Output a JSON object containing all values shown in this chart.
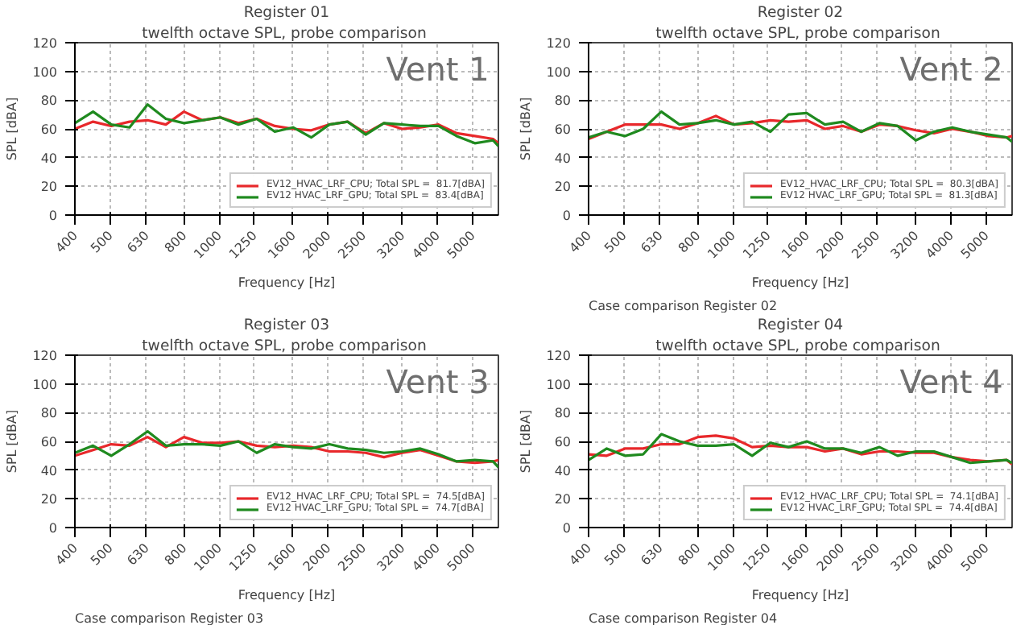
{
  "chart_data": [
    {
      "type": "line",
      "title": "Register 01",
      "subtitle": "twelfth octave SPL,  probe comparison",
      "xlabel": "Frequency [Hz]",
      "ylabel": "SPL [dBA]",
      "log": "x",
      "grid": true,
      "legend": "bottom right",
      "xlim": [
        400,
        5900
      ],
      "ylim": [
        0,
        120
      ],
      "xticks": [
        400,
        500,
        630,
        800,
        1000,
        1250,
        1600,
        2000,
        2500,
        3200,
        4000,
        5000
      ],
      "yticks": [
        0,
        20,
        40,
        60,
        80,
        100,
        120
      ],
      "annotations": [
        "Vent 1"
      ],
      "x": [
        400,
        449,
        504,
        566,
        635,
        713,
        800,
        898,
        1008,
        1131,
        1270,
        1425,
        1600,
        1796,
        2016,
        2263,
        2540,
        2851,
        3200,
        3592,
        4032,
        4525,
        5080,
        5702,
        5900
      ],
      "series": [
        {
          "name": "EV12_HVAC_LRF_CPU; Total SPL =  81.7[dBA]",
          "color": "#e8282b",
          "values": [
            60,
            65,
            62,
            65,
            66,
            63,
            72,
            66,
            68,
            64,
            67,
            62,
            60,
            59,
            63,
            65,
            57,
            64,
            60,
            61,
            63,
            57,
            55,
            53,
            50
          ]
        },
        {
          "name": "EV12 HVAC_LRF_GPU; Total SPL =  83.4[dBA]",
          "color": "#1f8a1f",
          "values": [
            64,
            72,
            63,
            61,
            77,
            67,
            64,
            66,
            68,
            63,
            67,
            58,
            61,
            54,
            63,
            65,
            56,
            64,
            63,
            62,
            62,
            55,
            50,
            52,
            48
          ]
        }
      ]
    },
    {
      "type": "line",
      "title": "Register 02",
      "subtitle": "twelfth octave SPL,  probe comparison",
      "xlabel": "Frequency [Hz]",
      "ylabel": "SPL [dBA]",
      "log": "x",
      "grid": true,
      "legend": "bottom right",
      "xlim": [
        400,
        5900
      ],
      "ylim": [
        0,
        120
      ],
      "xticks": [
        400,
        500,
        630,
        800,
        1000,
        1250,
        1600,
        2000,
        2500,
        3200,
        4000,
        5000
      ],
      "yticks": [
        0,
        20,
        40,
        60,
        80,
        100,
        120
      ],
      "annotations": [
        "Vent 2",
        "Case comparison Register 02"
      ],
      "x": [
        400,
        449,
        504,
        566,
        635,
        713,
        800,
        898,
        1008,
        1131,
        1270,
        1425,
        1600,
        1796,
        2016,
        2263,
        2540,
        2851,
        3200,
        3592,
        4032,
        4525,
        5080,
        5702,
        5900
      ],
      "series": [
        {
          "name": "EV12_HVAC_LRF_CPU; Total SPL =  80.3[dBA]",
          "color": "#e8282b",
          "values": [
            53,
            58,
            63,
            63,
            63,
            60,
            64,
            69,
            63,
            64,
            66,
            65,
            66,
            60,
            62,
            58,
            63,
            62,
            59,
            57,
            60,
            58,
            55,
            54,
            55
          ]
        },
        {
          "name": "EV12 HVAC_LRF_GPU; Total SPL =  81.3[dBA]",
          "color": "#1f8a1f",
          "values": [
            54,
            58,
            55,
            60,
            72,
            63,
            64,
            66,
            63,
            65,
            58,
            70,
            71,
            63,
            65,
            58,
            64,
            62,
            52,
            58,
            61,
            58,
            56,
            54,
            51
          ]
        }
      ]
    },
    {
      "type": "line",
      "title": "Register 03",
      "subtitle": "twelfth octave SPL,  probe comparison",
      "xlabel": "Frequency [Hz]",
      "ylabel": "SPL [dBA]",
      "log": "x",
      "grid": true,
      "legend": "bottom right",
      "xlim": [
        400,
        5900
      ],
      "ylim": [
        0,
        120
      ],
      "xticks": [
        400,
        500,
        630,
        800,
        1000,
        1250,
        1600,
        2000,
        2500,
        3200,
        4000,
        5000
      ],
      "yticks": [
        0,
        20,
        40,
        60,
        80,
        100,
        120
      ],
      "annotations": [
        "Vent 3",
        "Case comparison Register 03"
      ],
      "x": [
        400,
        449,
        504,
        566,
        635,
        713,
        800,
        898,
        1008,
        1131,
        1270,
        1425,
        1600,
        1796,
        2016,
        2263,
        2540,
        2851,
        3200,
        3592,
        4032,
        4525,
        5080,
        5702,
        5900
      ],
      "series": [
        {
          "name": "EV12_HVAC_LRF_CPU; Total SPL =  74.5[dBA]",
          "color": "#e8282b",
          "values": [
            50,
            54,
            58,
            57,
            63,
            56,
            63,
            59,
            59,
            60,
            57,
            56,
            57,
            56,
            53,
            53,
            52,
            49,
            52,
            54,
            50,
            46,
            45,
            46,
            47
          ]
        },
        {
          "name": "EV12 HVAC_LRF_GPU; Total SPL =  74.7[dBA]",
          "color": "#1f8a1f",
          "values": [
            52,
            57,
            50,
            58,
            67,
            57,
            58,
            58,
            57,
            60,
            52,
            58,
            56,
            55,
            58,
            55,
            54,
            52,
            53,
            55,
            51,
            46,
            47,
            46,
            42
          ]
        }
      ]
    },
    {
      "type": "line",
      "title": "Register 04",
      "subtitle": "twelfth octave SPL,  probe comparison",
      "xlabel": "Frequency [Hz]",
      "ylabel": "SPL [dBA]",
      "log": "x",
      "grid": true,
      "legend": "bottom right",
      "xlim": [
        400,
        5900
      ],
      "ylim": [
        0,
        120
      ],
      "xticks": [
        400,
        500,
        630,
        800,
        1000,
        1250,
        1600,
        2000,
        2500,
        3200,
        4000,
        5000
      ],
      "yticks": [
        0,
        20,
        40,
        60,
        80,
        100,
        120
      ],
      "annotations": [
        "Vent 4",
        "Case comparison Register 04"
      ],
      "x": [
        400,
        449,
        504,
        566,
        635,
        713,
        800,
        898,
        1008,
        1131,
        1270,
        1425,
        1600,
        1796,
        2016,
        2263,
        2540,
        2851,
        3200,
        3592,
        4032,
        4525,
        5080,
        5702,
        5900
      ],
      "series": [
        {
          "name": "EV12_HVAC_LRF_CPU; Total SPL =  74.1[dBA]",
          "color": "#e8282b",
          "values": [
            51,
            50,
            55,
            55,
            58,
            58,
            63,
            64,
            62,
            56,
            57,
            56,
            56,
            53,
            55,
            51,
            53,
            53,
            52,
            52,
            49,
            47,
            46,
            47,
            44
          ]
        },
        {
          "name": "EV12 HVAC_LRF_GPU; Total SPL =  74.4[dBA]",
          "color": "#1f8a1f",
          "values": [
            47,
            55,
            50,
            51,
            65,
            60,
            57,
            57,
            58,
            50,
            59,
            56,
            60,
            55,
            55,
            52,
            56,
            50,
            53,
            53,
            49,
            45,
            46,
            47,
            45
          ]
        }
      ]
    }
  ]
}
